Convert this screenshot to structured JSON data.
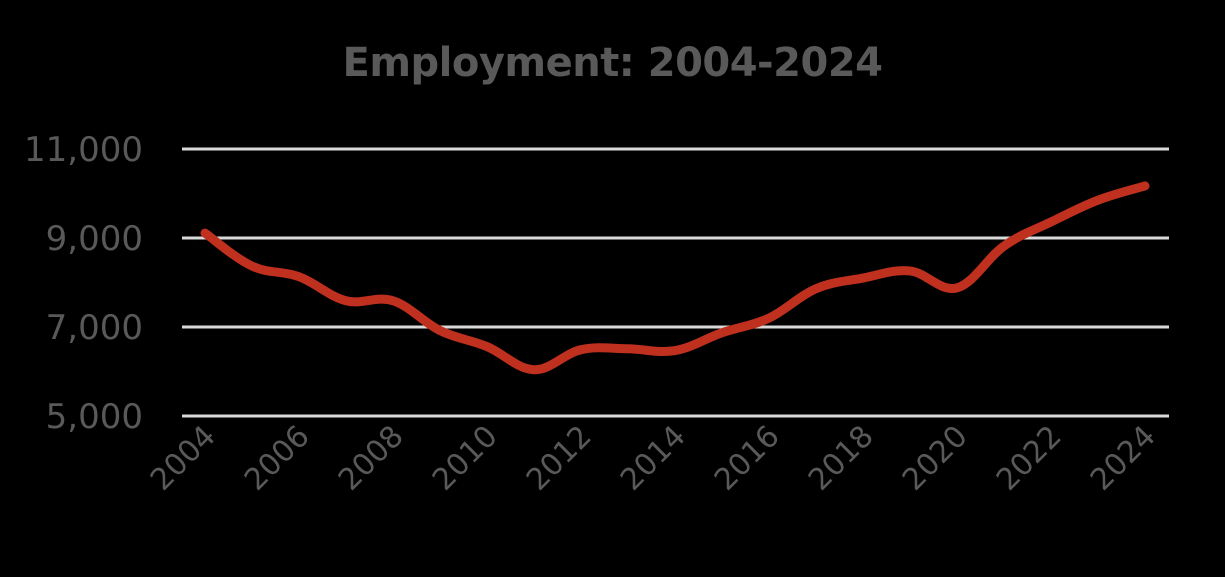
{
  "title": "Employment: 2004-2024",
  "colors": {
    "background": "#000000",
    "line": "#C0301E",
    "gridline": "#D9D9D9",
    "text": "#595959"
  },
  "chart_data": {
    "type": "line",
    "title": "Employment: 2004-2024",
    "xlabel": "",
    "ylabel": "",
    "ylim": [
      5000,
      11000
    ],
    "yticks": [
      5000,
      7000,
      9000,
      11000
    ],
    "ytick_labels": [
      "5,000",
      "7,000",
      "9,000",
      "11,000"
    ],
    "xtick_labels": [
      "2004",
      "2006",
      "2008",
      "2010",
      "2012",
      "2014",
      "2016",
      "2018",
      "2020",
      "2022",
      "2024"
    ],
    "grid": true,
    "legend": "none",
    "smoothed": true,
    "x": [
      2004,
      2005,
      2006,
      2007,
      2008,
      2009,
      2010,
      2011,
      2012,
      2013,
      2014,
      2015,
      2016,
      2017,
      2018,
      2019,
      2020,
      2021,
      2022,
      2023,
      2024
    ],
    "series": [
      {
        "name": "Employment",
        "values": [
          9110,
          8370,
          8130,
          7590,
          7590,
          6920,
          6560,
          6040,
          6490,
          6510,
          6470,
          6870,
          7200,
          7860,
          8100,
          8260,
          7880,
          8820,
          9360,
          9850,
          10170
        ]
      }
    ]
  }
}
